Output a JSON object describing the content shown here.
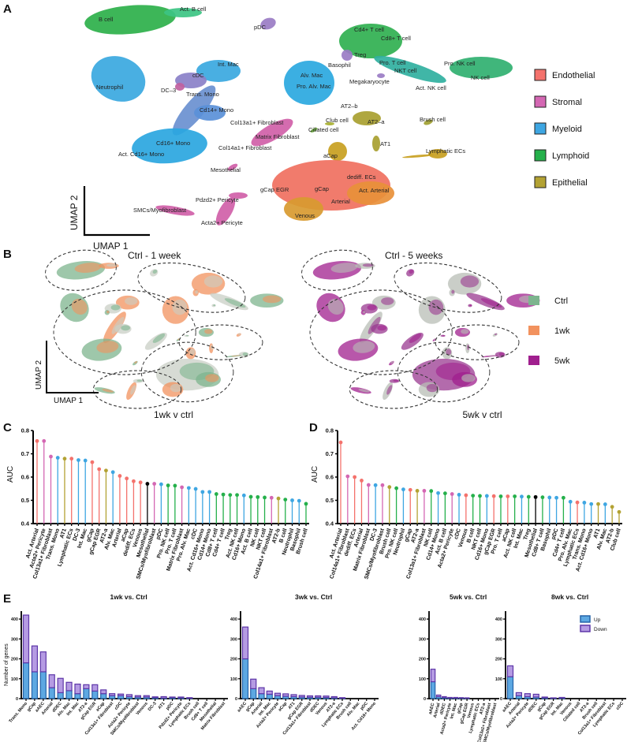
{
  "panels": {
    "a": "A",
    "b": "B",
    "c": "C",
    "d": "D",
    "e": "E"
  },
  "umap_a": {
    "axis_x": "UMAP 1",
    "axis_y": "UMAP 2",
    "cluster_labels": [
      "Act. B cell",
      "B cell",
      "pDC",
      "Neutrophil",
      "Int. Mac",
      "cDC",
      "DC–3",
      "Trans. Mono",
      "Cd14+ Mono",
      "Cd16+ Mono",
      "Act. Cd16+ Mono",
      "Alv. Mac",
      "Pro. Alv. Mac",
      "Col13a1+ Fibroblast",
      "Matrix Fibroblast",
      "Col14a1+ Fibroblast",
      "Mesothelial",
      "Pdzd2+ Pericyte",
      "SMCs/Myofibroblast",
      "Acta2+ Pericyte",
      "Cd4+ T cell",
      "Cd8+ T cell",
      "Treg",
      "Basophil",
      "Pro. T cell",
      "NKT cell",
      "Megakaryocyte",
      "Pro. NK cell",
      "NK cell",
      "Act. NK cell",
      "AT2–b",
      "Club cell",
      "AT2–a",
      "Ciliated cell",
      "AT1",
      "Brush cell",
      "Lymphatic ECs",
      "aCap",
      "dediff. ECs",
      "gCap EGR",
      "gCap",
      "Act. Arterial",
      "Arterial",
      "Venous"
    ],
    "legend": [
      {
        "label": "Endothelial",
        "color": "#F4726C"
      },
      {
        "label": "Stromal",
        "color": "#D467B3"
      },
      {
        "label": "Myeloid",
        "color": "#3EA6E2"
      },
      {
        "label": "Lymphoid",
        "color": "#25B04B"
      },
      {
        "label": "Epithelial",
        "color": "#B3A233"
      }
    ]
  },
  "umap_b": {
    "title_left": "Ctrl - 1 week",
    "title_right": "Ctrl - 5 weeks",
    "axis_x": "UMAP 1",
    "axis_y": "UMAP 2",
    "legend": [
      {
        "label": "Ctrl",
        "color": "#7DB48E"
      },
      {
        "label": "1wk",
        "color": "#F2925E"
      },
      {
        "label": "5wk",
        "color": "#A01F8E"
      }
    ]
  },
  "chart_data": [
    {
      "id": "C",
      "type": "lollipop",
      "title": "1wk v ctrl",
      "ylabel": "AUC",
      "ylim": [
        0.4,
        0.8
      ],
      "yticks": [
        "0.4",
        "0.5",
        "0.6",
        "0.7",
        "0.8"
      ],
      "categories": [
        "Act. Arterial",
        "Acta2+ Pericyte",
        "Col13a1+ Fibroblast",
        "Trans. Mono",
        "AT1",
        "Lymphatic ECs",
        "DC-3",
        "Int. Mac",
        "gCap",
        "gCap EGR",
        "AT2-a",
        "Alv. Mac",
        "Arterial",
        "aCap",
        "dediff. ECs",
        "Venous",
        "Mesothelial",
        "SMCs/Myofibroblast",
        "pDC",
        "Pro. NK cell",
        "Pro. T cell",
        "Matrix Fibroblast",
        "Pro. Alv. Mac",
        "cDC",
        "Act. Cd16+ Mono",
        "Cd14+ Mono",
        "Cd8+ T cell",
        "Cd4+ T cell",
        "Treg",
        "Act. NK cell",
        "Cd16+ Mono",
        "Act. B cell",
        "NK cell",
        "NKT cell",
        "Col14a1+ Fibroblast",
        "AT2-b",
        "B cell",
        "Neutrophil",
        "Basophil",
        "Brush cell"
      ],
      "values": [
        0.755,
        0.755,
        0.688,
        0.683,
        0.679,
        0.679,
        0.673,
        0.671,
        0.664,
        0.634,
        0.628,
        0.621,
        0.605,
        0.594,
        0.582,
        0.577,
        0.571,
        0.571,
        0.569,
        0.564,
        0.563,
        0.556,
        0.553,
        0.549,
        0.536,
        0.536,
        0.527,
        0.525,
        0.523,
        0.523,
        0.521,
        0.515,
        0.514,
        0.512,
        0.511,
        0.508,
        0.503,
        0.5,
        0.498,
        0.485
      ],
      "groups": [
        "E",
        "S",
        "S",
        "M",
        "P",
        "E",
        "M",
        "M",
        "E",
        "E",
        "P",
        "M",
        "E",
        "E",
        "E",
        "E",
        "X",
        "S",
        "M",
        "L",
        "L",
        "S",
        "M",
        "M",
        "M",
        "M",
        "L",
        "L",
        "L",
        "L",
        "M",
        "L",
        "L",
        "L",
        "S",
        "P",
        "L",
        "M",
        "M",
        "L"
      ]
    },
    {
      "id": "D",
      "type": "lollipop",
      "title": "5wk v ctrl",
      "ylabel": "AUC",
      "ylim": [
        0.4,
        0.8
      ],
      "yticks": [
        "0.4",
        "0.5",
        "0.6",
        "0.7",
        "0.8"
      ],
      "categories": [
        "Act. Arterial",
        "Col14a1+ Fibroblast",
        "dediff. ECs",
        "Arterial",
        "Matrix Fibroblast",
        "DC-3",
        "SMCs/Myofibroblast",
        "Brush cell",
        "Pro. NK cell",
        "Neutrophil",
        "gCap",
        "AT2-a",
        "Col13a1+ Fibroblast",
        "NK cell",
        "Cd14+ Mono",
        "Act. B cell",
        "Acta2+ Pericyte",
        "cDC",
        "Venous",
        "B cell",
        "NKT cell",
        "Cd16+ Mono",
        "gCap EGR",
        "Pro. T cell",
        "aCap",
        "Act. NK cell",
        "Int. Mac",
        "Treg",
        "Mesothelial",
        "Cd8+ T cell",
        "Basophil",
        "pDC",
        "Cd4+ T cell",
        "Pro. Alv. Mac",
        "Lymphatic ECs",
        "Trans. Mono",
        "Act. Cd16+ Mono",
        "AT1",
        "Alv. Mac",
        "AT2-b",
        "Club cell"
      ],
      "values": [
        0.749,
        0.603,
        0.6,
        0.585,
        0.566,
        0.565,
        0.565,
        0.557,
        0.552,
        0.547,
        0.545,
        0.541,
        0.541,
        0.54,
        0.531,
        0.53,
        0.527,
        0.524,
        0.522,
        0.52,
        0.519,
        0.519,
        0.518,
        0.517,
        0.517,
        0.517,
        0.516,
        0.515,
        0.514,
        0.513,
        0.512,
        0.511,
        0.511,
        0.494,
        0.491,
        0.49,
        0.484,
        0.484,
        0.483,
        0.472,
        0.45
      ],
      "groups": [
        "E",
        "S",
        "E",
        "E",
        "S",
        "M",
        "S",
        "P",
        "L",
        "M",
        "E",
        "P",
        "S",
        "L",
        "M",
        "L",
        "S",
        "M",
        "E",
        "L",
        "L",
        "M",
        "E",
        "L",
        "E",
        "L",
        "M",
        "L",
        "X",
        "L",
        "M",
        "M",
        "L",
        "M",
        "E",
        "M",
        "M",
        "P",
        "M",
        "P",
        "P"
      ]
    },
    {
      "id": "E1",
      "type": "stacked-bar",
      "title": "1wk vs. Ctrl",
      "ylabel": "Number of genes",
      "ylim": [
        0,
        440
      ],
      "yticks": [
        "0",
        "100",
        "200",
        "300",
        "400"
      ],
      "categories": [
        "Trans. Mono",
        "gCap",
        "aAEC",
        "Arterial",
        "dDEC",
        "Alv. Mac",
        "Int. Mac",
        "AT2-a",
        "gCap EGR",
        "aCap",
        "Col13a1+ Fibroblast",
        "cDC",
        "Acta2+ Pericyte",
        "SMCs/Myofibroblast",
        "Venous",
        "DC-3",
        "AT1",
        "pDC",
        "Pdzd2+ Pericyte",
        "Lymphatic ECs",
        "Brush cell",
        "Cd8+ T cell",
        "Mesothelial",
        "Matrix Fibroblast"
      ],
      "series": [
        {
          "name": "Up",
          "values": [
            180,
            135,
            135,
            55,
            30,
            40,
            25,
            50,
            38,
            25,
            15,
            15,
            10,
            8,
            8,
            5,
            3,
            5,
            4,
            2,
            0,
            0,
            0,
            0
          ]
        },
        {
          "name": "Down",
          "values": [
            240,
            130,
            100,
            65,
            72,
            42,
            48,
            20,
            32,
            19,
            10,
            8,
            10,
            7,
            7,
            4,
            7,
            3,
            4,
            3,
            0,
            0,
            0,
            0
          ]
        }
      ]
    },
    {
      "id": "E2",
      "type": "stacked-bar",
      "title": "3wk vs. Ctrl",
      "ylim": [
        0,
        440
      ],
      "yticks": [
        "0",
        "100",
        "200",
        "300",
        "400"
      ],
      "categories": [
        "aAEC",
        "gCap",
        "Arterial",
        "Int. Mac",
        "Acta2+ Pericyte",
        "aCap",
        "AT1",
        "gCap EGR",
        "Col13a1+ Fibroblast",
        "dDEC",
        "Venous",
        "AT2-a",
        "Lymphatic ECs",
        "Brush cell",
        "Alv. Mac",
        "pDC",
        "Act. Cd16+ Mono"
      ],
      "series": [
        {
          "name": "Up",
          "values": [
            200,
            50,
            25,
            22,
            15,
            12,
            10,
            8,
            7,
            7,
            6,
            4,
            2,
            0,
            0,
            0,
            0
          ]
        },
        {
          "name": "Down",
          "values": [
            160,
            48,
            30,
            16,
            12,
            12,
            10,
            8,
            7,
            7,
            7,
            6,
            3,
            0,
            0,
            0,
            0
          ]
        }
      ]
    },
    {
      "id": "E3",
      "type": "stacked-bar",
      "title": "5wk vs. Ctrl",
      "ylim": [
        0,
        440
      ],
      "yticks": [
        "0",
        "100",
        "200",
        "300",
        "400"
      ],
      "categories": [
        "aAEC",
        "Arterial",
        "dDEC",
        "Acta2+ Pericyte",
        "Int. Mac",
        "gCap",
        "gCap EGR",
        "Venous",
        "Lymphatic ECs",
        "AT2-a",
        "Col13a1+ Fibroblast",
        "SMCs/Myofibroblast"
      ],
      "series": [
        {
          "name": "Up",
          "values": [
            85,
            10,
            5,
            3,
            3,
            3,
            2,
            0,
            0,
            0,
            0,
            0
          ]
        },
        {
          "name": "Down",
          "values": [
            63,
            8,
            5,
            3,
            3,
            2,
            2,
            0,
            0,
            0,
            0,
            0
          ]
        }
      ]
    },
    {
      "id": "E4",
      "type": "stacked-bar",
      "title": "8wk vs. Ctrl",
      "ylim": [
        0,
        440
      ],
      "yticks": [
        "0",
        "100",
        "200",
        "300",
        "400"
      ],
      "categories": [
        "aAEC",
        "Arterial",
        "Acta2+ Pericyte",
        "dDEC",
        "gCap",
        "gCap EGR",
        "Int. Mac",
        "Venous",
        "Ciliated cell",
        "AT2-a",
        "Brush cell",
        "Col13a1+ Fibroblast",
        "Lymphatic ECs",
        "cDC"
      ],
      "series": [
        {
          "name": "Up",
          "values": [
            110,
            15,
            10,
            8,
            4,
            2,
            3,
            0,
            0,
            0,
            0,
            0,
            0,
            0
          ]
        },
        {
          "name": "Down",
          "values": [
            55,
            15,
            15,
            14,
            4,
            2,
            3,
            0,
            0,
            0,
            0,
            0,
            0,
            0
          ]
        }
      ],
      "legend": [
        "Up",
        "Down"
      ]
    }
  ],
  "colors": {
    "E": "#F4726C",
    "S": "#D467B3",
    "M": "#3EA6E2",
    "L": "#25B04B",
    "P": "#B3A233",
    "X": "#000000",
    "up_fill": "#5DA8E2",
    "up_edge": "#2563A8",
    "down_fill": "#B59BE3",
    "down_edge": "#5E37A8"
  }
}
